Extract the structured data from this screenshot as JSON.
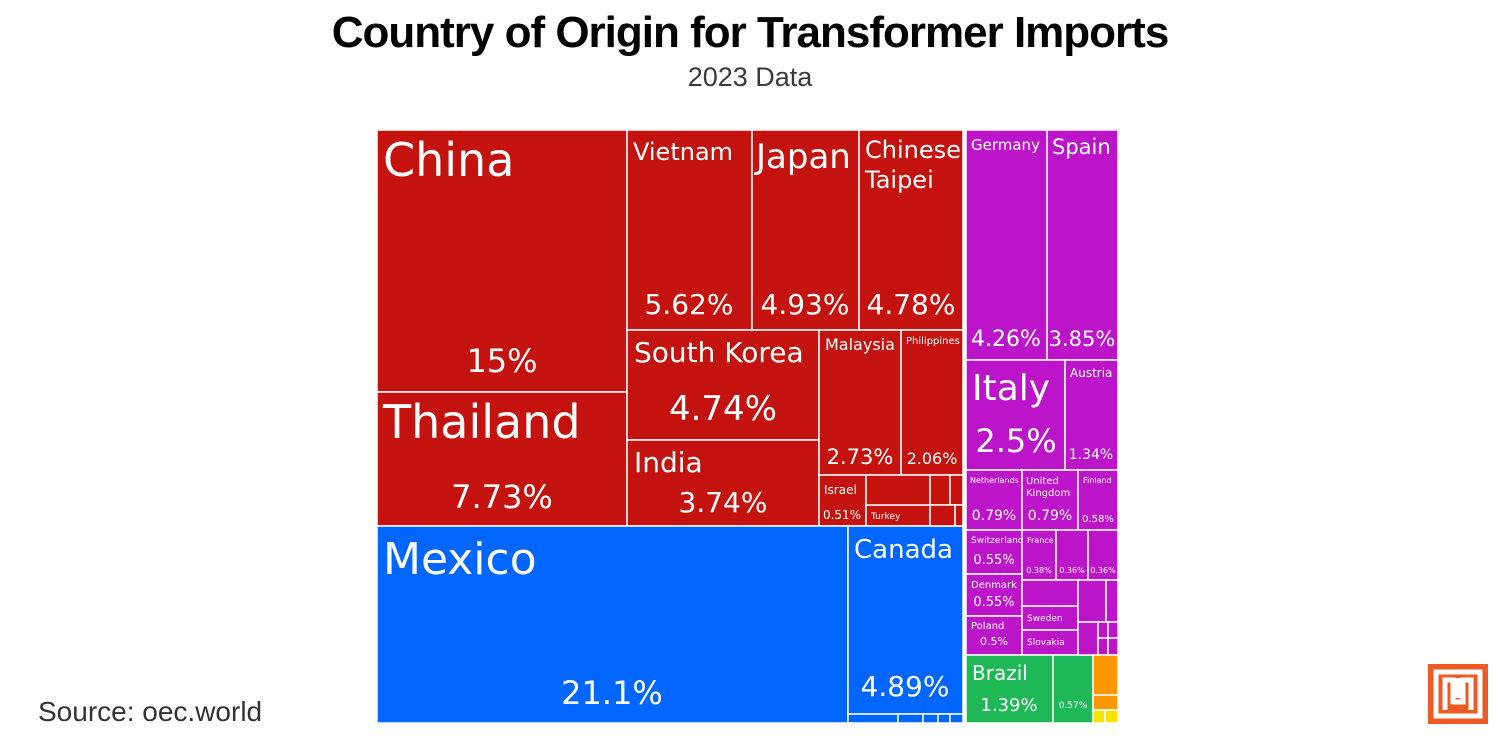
{
  "header": {
    "title": "Country of Origin for Transformer Imports",
    "subtitle": "2023 Data"
  },
  "footer": {
    "source": "Source: oec.world"
  },
  "colors": {
    "asia": "#c4130f",
    "north_america": "#0066ff",
    "europe": "#bb14c9",
    "south_america": "#1fb856",
    "africa": "#ff9800",
    "oceania": "#f7e300",
    "logo": "#ee5a24"
  },
  "logo": {
    "icon": "publisher-logo-icon"
  },
  "chart_data": {
    "type": "treemap",
    "unit": "% of imports",
    "groups": [
      {
        "id": "asia",
        "color_key": "asia",
        "tiles": [
          {
            "label": "China",
            "value": 15,
            "display": "15%"
          },
          {
            "label": "Thailand",
            "value": 7.73,
            "display": "7.73%"
          },
          {
            "label": "Vietnam",
            "value": 5.62,
            "display": "5.62%"
          },
          {
            "label": "Japan",
            "value": 4.93,
            "display": "4.93%"
          },
          {
            "label": "Chinese Taipei",
            "value": 4.78,
            "display": "4.78%"
          },
          {
            "label": "South Korea",
            "value": 4.74,
            "display": "4.74%"
          },
          {
            "label": "India",
            "value": 3.74,
            "display": "3.74%"
          },
          {
            "label": "Malaysia",
            "value": 2.73,
            "display": "2.73%"
          },
          {
            "label": "Philippines",
            "value": 2.06,
            "display": "2.06%"
          },
          {
            "label": "Israel",
            "value": 0.51,
            "display": "0.51%"
          },
          {
            "label": "Turkey",
            "value": null,
            "display": ""
          }
        ]
      },
      {
        "id": "north_america",
        "color_key": "north_america",
        "tiles": [
          {
            "label": "Mexico",
            "value": 21.1,
            "display": "21.1%"
          },
          {
            "label": "Canada",
            "value": 4.89,
            "display": "4.89%"
          }
        ]
      },
      {
        "id": "europe",
        "color_key": "europe",
        "tiles": [
          {
            "label": "Germany",
            "value": 4.26,
            "display": "4.26%"
          },
          {
            "label": "Spain",
            "value": 3.85,
            "display": "3.85%"
          },
          {
            "label": "Italy",
            "value": 2.5,
            "display": "2.5%"
          },
          {
            "label": "Austria",
            "value": 1.34,
            "display": "1.34%"
          },
          {
            "label": "Netherlands",
            "value": 0.79,
            "display": "0.79%"
          },
          {
            "label": "United Kingdom",
            "value": 0.79,
            "display": "0.79%"
          },
          {
            "label": "Finland",
            "value": 0.58,
            "display": "0.58%"
          },
          {
            "label": "Switzerland",
            "value": 0.55,
            "display": "0.55%"
          },
          {
            "label": "France",
            "value": 0.38,
            "display": "0.38%"
          },
          {
            "label": "",
            "value": 0.36,
            "display": "0.36%"
          },
          {
            "label": "",
            "value": 0.36,
            "display": "0.36%"
          },
          {
            "label": "Denmark",
            "value": 0.55,
            "display": "0.55%"
          },
          {
            "label": "Poland",
            "value": 0.5,
            "display": "0.5%"
          },
          {
            "label": "Sweden",
            "value": null,
            "display": ""
          },
          {
            "label": "Slovakia",
            "value": null,
            "display": ""
          }
        ]
      },
      {
        "id": "south_america",
        "color_key": "south_america",
        "tiles": [
          {
            "label": "Brazil",
            "value": 1.39,
            "display": "1.39%"
          },
          {
            "label": "",
            "value": 0.57,
            "display": "0.57%"
          }
        ]
      }
    ]
  }
}
